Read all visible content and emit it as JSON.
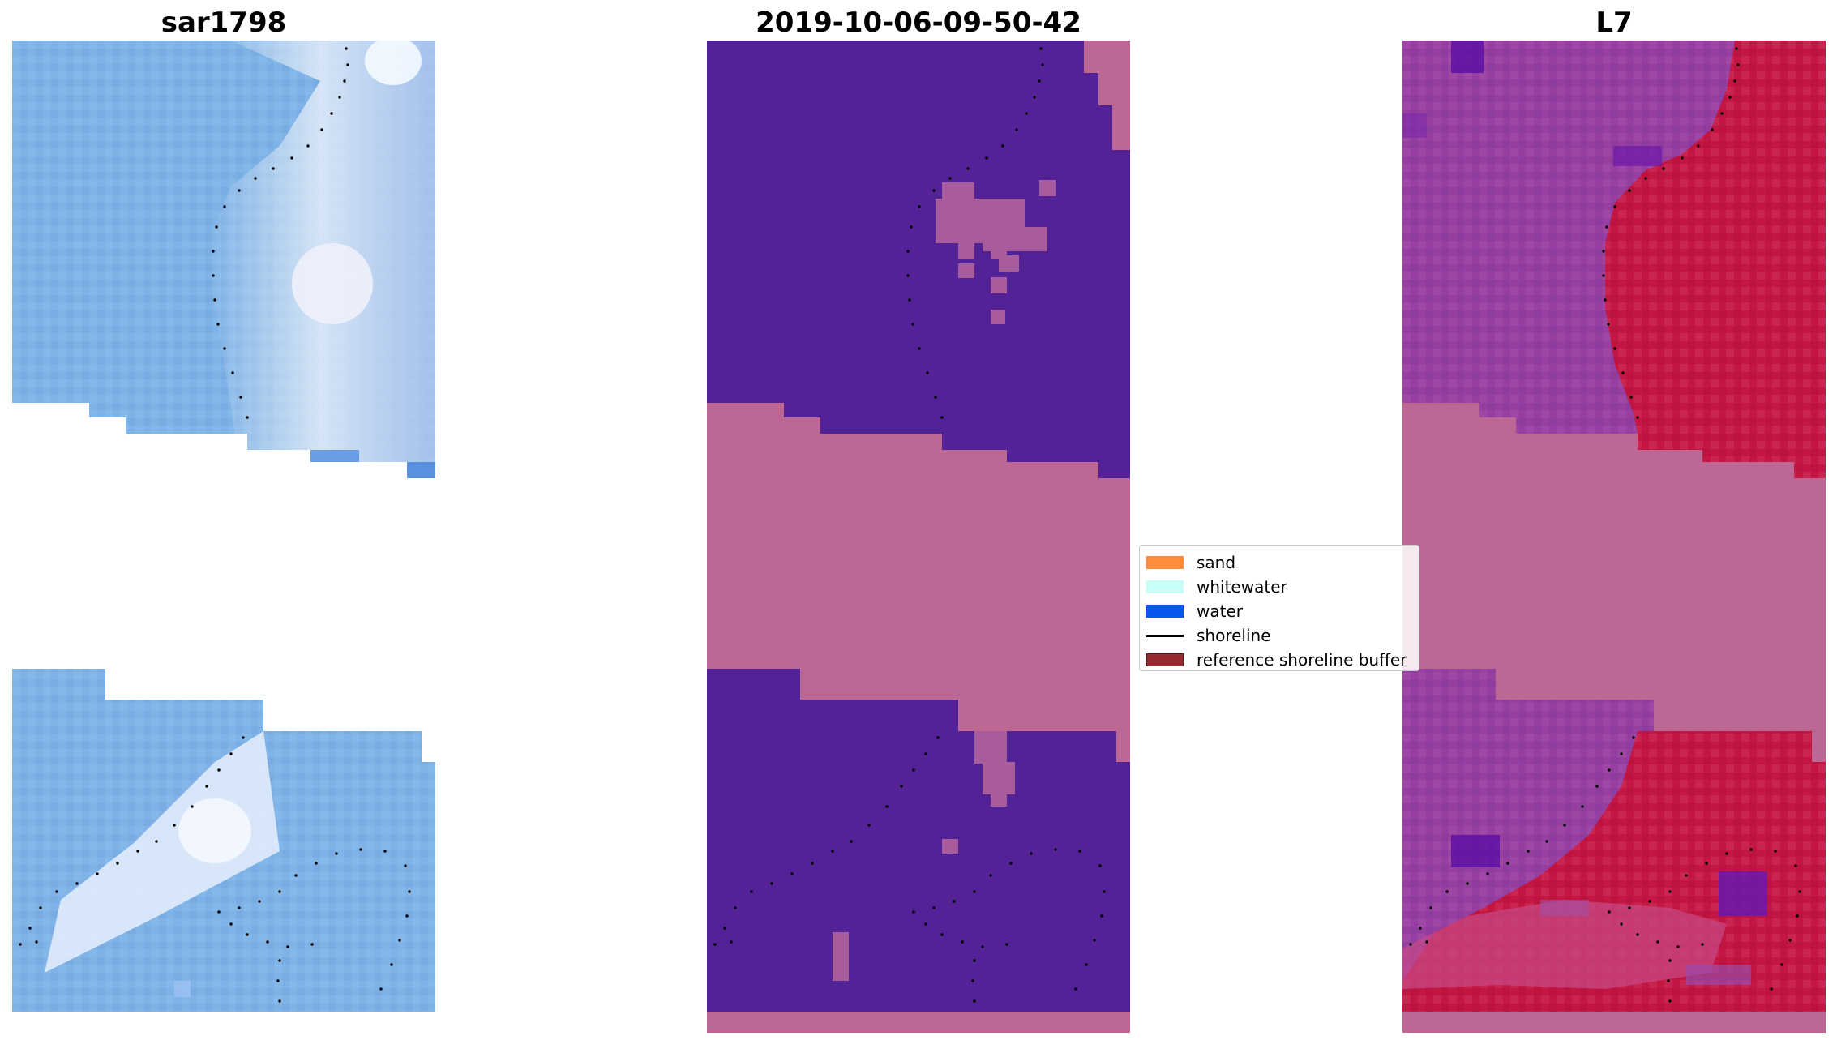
{
  "panels": [
    {
      "title": "sar1798"
    },
    {
      "title": "2019-10-06-09-50-42"
    },
    {
      "title": "L7"
    }
  ],
  "legend": {
    "items": [
      {
        "label": "sand",
        "color": "#ff8c3a",
        "kind": "patch"
      },
      {
        "label": "whitewater",
        "color": "#c8fff8",
        "kind": "patch"
      },
      {
        "label": "water",
        "color": "#0a55ee",
        "kind": "patch"
      },
      {
        "label": "shoreline",
        "color": "#000000",
        "kind": "line"
      },
      {
        "label": "reference shoreline buffer",
        "color": "#962830",
        "kind": "patch"
      }
    ]
  },
  "colors": {
    "rgb_water": "#7fb2e6",
    "rgb_surf": "#d8e6f8",
    "class_water": "#522296",
    "class_sand_mask": "#bd6795",
    "mndwi_low": "#8e42a2",
    "mndwi_high": "#c41643",
    "nodata_pink": "#bd6795"
  }
}
